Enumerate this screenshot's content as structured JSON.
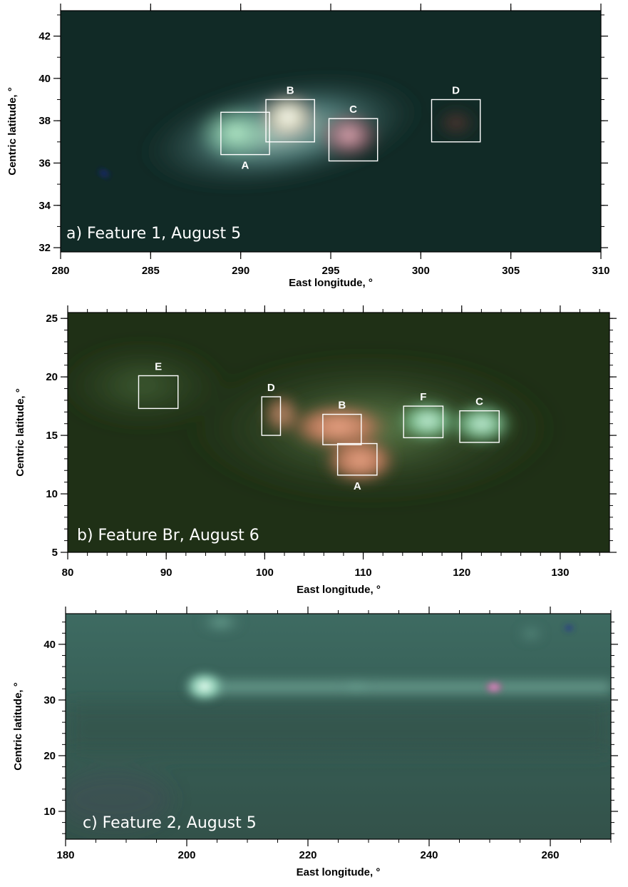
{
  "chart_data": [
    {
      "type": "image",
      "panel_label": "a)  Feature 1, August 5",
      "xlabel": "East longitude, °",
      "ylabel": "Centric latitude, °",
      "xlim": [
        280,
        310
      ],
      "ylim": [
        31.8,
        43.2
      ],
      "xticks": [
        280,
        285,
        290,
        295,
        300,
        305,
        310
      ],
      "yticks": [
        32,
        34,
        36,
        38,
        40,
        42
      ],
      "regions": [
        {
          "label": "A",
          "lon": [
            288.9,
            291.6
          ],
          "lat": [
            36.4,
            38.4
          ],
          "label_pos": "below"
        },
        {
          "label": "B",
          "lon": [
            291.4,
            294.1
          ],
          "lat": [
            37.0,
            39.0
          ],
          "label_pos": "above"
        },
        {
          "label": "C",
          "lon": [
            294.9,
            297.6
          ],
          "lat": [
            36.1,
            38.1
          ],
          "label_pos": "above"
        },
        {
          "label": "D",
          "lon": [
            300.6,
            303.3
          ],
          "lat": [
            37.0,
            39.0
          ],
          "label_pos": "above"
        }
      ],
      "colors": {
        "background": "#112a26",
        "cloud": "#7fa8a2"
      }
    },
    {
      "type": "image",
      "panel_label": "b)  Feature Br, August 6",
      "xlabel": "East longitude, °",
      "ylabel": "Centric latitude, °",
      "xlim": [
        80,
        135
      ],
      "ylim": [
        5,
        25.5
      ],
      "xticks": [
        80,
        90,
        100,
        110,
        120,
        130
      ],
      "yticks": [
        5,
        10,
        15,
        20,
        25
      ],
      "regions": [
        {
          "label": "E",
          "lon": [
            87.2,
            91.2
          ],
          "lat": [
            17.3,
            20.1
          ],
          "label_pos": "above"
        },
        {
          "label": "D",
          "lon": [
            99.7,
            101.6
          ],
          "lat": [
            15.0,
            18.3
          ],
          "label_pos": "above"
        },
        {
          "label": "B",
          "lon": [
            105.9,
            109.8
          ],
          "lat": [
            14.2,
            16.8
          ],
          "label_pos": "above"
        },
        {
          "label": "A",
          "lon": [
            107.4,
            111.4
          ],
          "lat": [
            11.6,
            14.3
          ],
          "label_pos": "below"
        },
        {
          "label": "F",
          "lon": [
            114.1,
            118.1
          ],
          "lat": [
            14.8,
            17.5
          ],
          "label_pos": "above"
        },
        {
          "label": "C",
          "lon": [
            119.8,
            123.8
          ],
          "lat": [
            14.4,
            17.1
          ],
          "label_pos": "above"
        }
      ],
      "colors": {
        "background": "#1f3016",
        "cloud": "#7a9a64"
      }
    },
    {
      "type": "image",
      "panel_label": "c)  Feature 2, August 5",
      "xlabel": "East longitude, °",
      "ylabel": "Centric latitude, °",
      "xlim": [
        180,
        270
      ],
      "ylim": [
        5,
        45.5
      ],
      "xticks": [
        180,
        200,
        220,
        240,
        260
      ],
      "yticks": [
        10,
        20,
        30,
        40
      ],
      "regions": [],
      "colors": {
        "background": "#37574f",
        "band": "#6e9e95",
        "spot": "#d77fbf"
      }
    }
  ]
}
